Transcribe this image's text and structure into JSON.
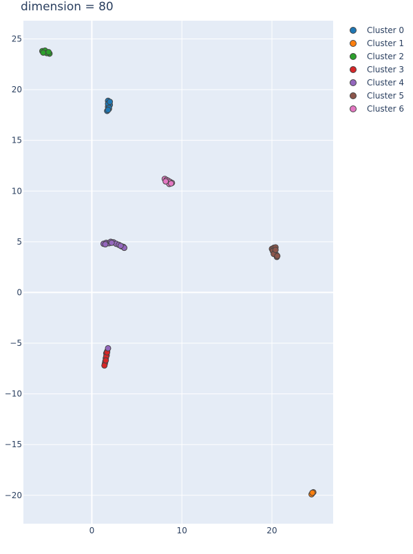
{
  "chart_data": {
    "type": "scatter",
    "title": "dimension = 80",
    "xlabel": "",
    "ylabel": "",
    "xlim": [
      -7.6,
      26.8
    ],
    "ylim": [
      -22.8,
      26.8
    ],
    "xticks": [
      0,
      10,
      20
    ],
    "yticks": [
      -20,
      -15,
      -10,
      -5,
      0,
      5,
      10,
      15,
      20,
      25
    ],
    "grid": true,
    "legend_position": "top-right",
    "series": [
      {
        "name": "Cluster 0",
        "color": "#1f77b4",
        "points": [
          [
            1.8,
            18.9
          ],
          [
            1.9,
            18.7
          ],
          [
            2.0,
            18.5
          ],
          [
            1.8,
            18.3
          ],
          [
            1.9,
            18.1
          ],
          [
            1.7,
            17.9
          ],
          [
            1.8,
            18.6
          ],
          [
            1.9,
            18.2
          ],
          [
            2.0,
            18.8
          ],
          [
            1.8,
            18.0
          ]
        ]
      },
      {
        "name": "Cluster 1",
        "color": "#ff7f0e",
        "points": [
          [
            24.5,
            -19.8
          ],
          [
            24.6,
            -19.7
          ],
          [
            24.4,
            -19.9
          ],
          [
            24.5,
            -19.75
          ]
        ]
      },
      {
        "name": "Cluster 2",
        "color": "#2ca02c",
        "points": [
          [
            -5.5,
            23.8
          ],
          [
            -5.3,
            23.7
          ],
          [
            -5.1,
            23.75
          ],
          [
            -4.9,
            23.65
          ],
          [
            -4.7,
            23.55
          ],
          [
            -5.2,
            23.85
          ],
          [
            -5.0,
            23.6
          ],
          [
            -4.8,
            23.7
          ],
          [
            -5.4,
            23.65
          ]
        ]
      },
      {
        "name": "Cluster 3",
        "color": "#d62728",
        "points": [
          [
            1.7,
            -5.8
          ],
          [
            1.6,
            -6.0
          ],
          [
            1.65,
            -6.2
          ],
          [
            1.55,
            -6.5
          ],
          [
            1.5,
            -6.8
          ],
          [
            1.45,
            -7.0
          ],
          [
            1.4,
            -7.2
          ],
          [
            1.6,
            -6.3
          ],
          [
            1.55,
            -6.7
          ],
          [
            1.7,
            -5.9
          ]
        ]
      },
      {
        "name": "Cluster 4",
        "color": "#9467bd",
        "points": [
          [
            1.3,
            4.8
          ],
          [
            1.6,
            4.9
          ],
          [
            1.9,
            4.85
          ],
          [
            2.1,
            5.0
          ],
          [
            2.4,
            4.95
          ],
          [
            2.7,
            4.8
          ],
          [
            3.0,
            4.7
          ],
          [
            3.3,
            4.55
          ],
          [
            3.5,
            4.5
          ],
          [
            3.6,
            4.4
          ],
          [
            3.2,
            4.6
          ],
          [
            1.5,
            4.75
          ],
          [
            2.2,
            4.9
          ],
          [
            1.8,
            -5.5
          ]
        ]
      },
      {
        "name": "Cluster 5",
        "color": "#8c564b",
        "points": [
          [
            20.0,
            4.3
          ],
          [
            20.2,
            4.4
          ],
          [
            20.4,
            4.45
          ],
          [
            20.1,
            4.1
          ],
          [
            20.3,
            3.9
          ],
          [
            20.5,
            3.7
          ],
          [
            20.55,
            3.5
          ],
          [
            20.2,
            3.8
          ],
          [
            20.4,
            4.2
          ],
          [
            20.6,
            3.6
          ]
        ]
      },
      {
        "name": "Cluster 6",
        "color": "#e377c2",
        "points": [
          [
            8.1,
            11.2
          ],
          [
            8.3,
            11.1
          ],
          [
            8.5,
            11.0
          ],
          [
            8.7,
            10.9
          ],
          [
            8.9,
            10.8
          ],
          [
            8.6,
            10.7
          ],
          [
            8.2,
            10.95
          ],
          [
            8.8,
            10.75
          ]
        ]
      }
    ]
  }
}
